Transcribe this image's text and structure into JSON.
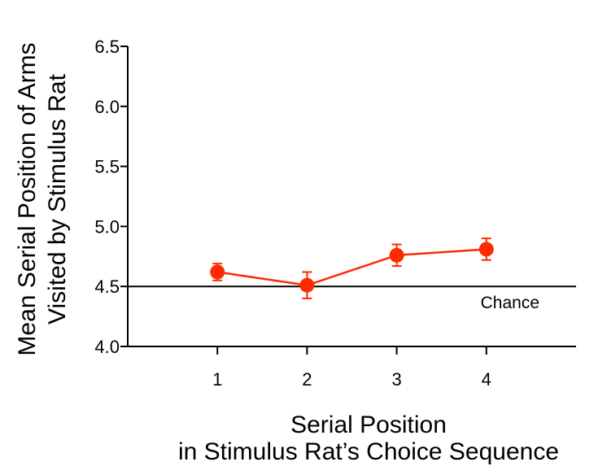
{
  "chart_data": {
    "type": "line",
    "title": "",
    "ylabel_lines": [
      "Mean Serial Position of Arms",
      "Visited by Stimulus  Rat"
    ],
    "xlabel_lines": [
      "Serial Position",
      "in Stimulus Rat’s Choice Sequence"
    ],
    "x": [
      1,
      2,
      3,
      4
    ],
    "x_tick_labels": [
      "1",
      "2",
      "3",
      "4"
    ],
    "xlim": [
      0.0,
      5.0
    ],
    "ylim": [
      4.0,
      6.5
    ],
    "y_ticks": [
      4.0,
      4.5,
      5.0,
      5.5,
      6.0,
      6.5
    ],
    "y_tick_labels": [
      "4.0",
      "4.5",
      "5.0",
      "5.5",
      "6.0",
      "6.5"
    ],
    "grid": false,
    "series": [
      {
        "values": [
          4.62,
          4.51,
          4.76,
          4.81
        ],
        "error": [
          0.07,
          0.11,
          0.09,
          0.09
        ],
        "color": "#ff2a00"
      }
    ],
    "reference_line": {
      "y": 4.5,
      "label": "Chance",
      "color": "#000000"
    }
  }
}
